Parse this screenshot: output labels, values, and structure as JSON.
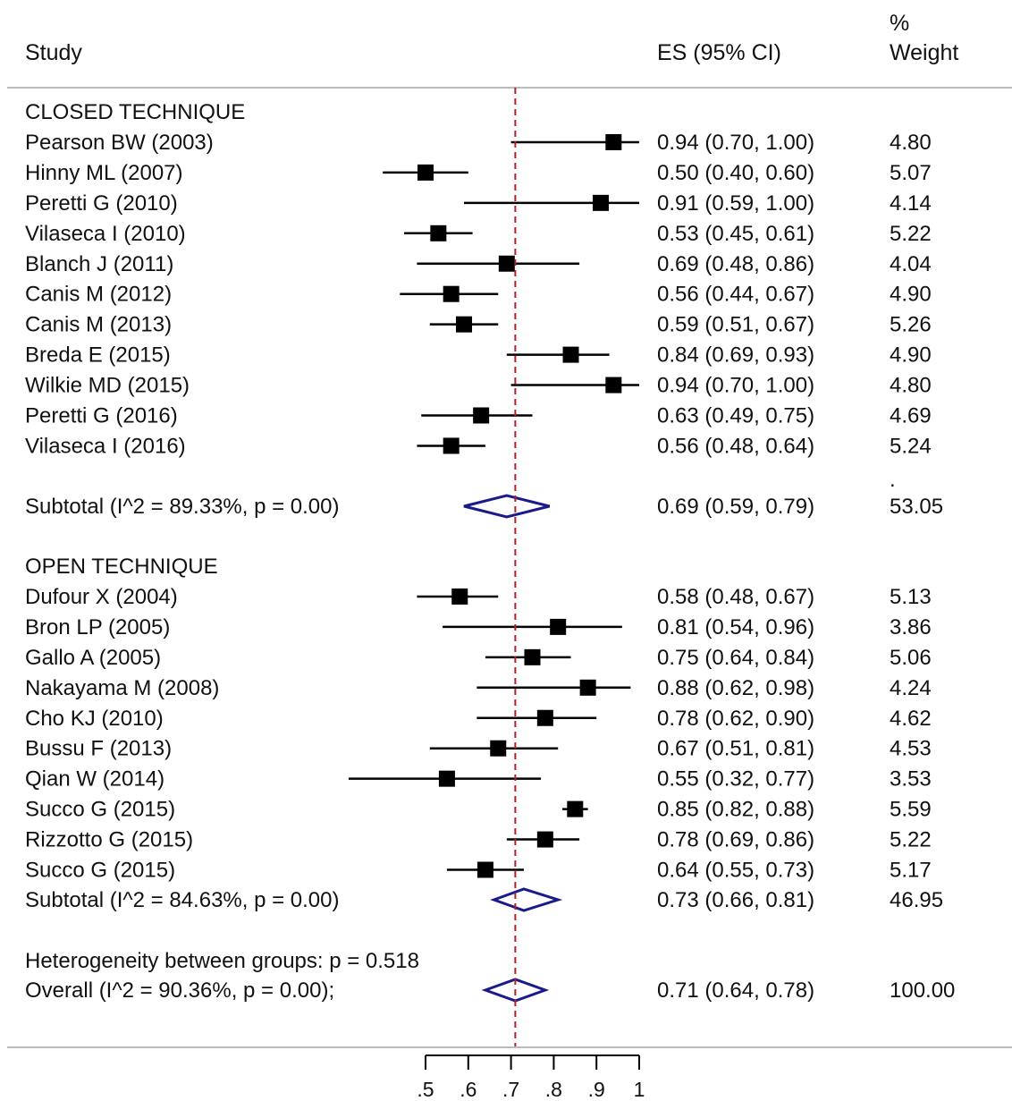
{
  "chart_data": {
    "type": "forest",
    "headers": {
      "study": "Study",
      "es": "ES (95% CI)",
      "weight_top": "%",
      "weight": "Weight"
    },
    "reference_line": 0.71,
    "xlim": [
      0.5,
      1.0
    ],
    "ticks": [
      {
        "value": 0.5,
        "label": ".5"
      },
      {
        "value": 0.6,
        "label": ".6"
      },
      {
        "value": 0.7,
        "label": ".7"
      },
      {
        "value": 0.8,
        "label": ".8"
      },
      {
        "value": 0.9,
        "label": ".9"
      },
      {
        "value": 1.0,
        "label": "1"
      }
    ],
    "groups": [
      {
        "label": "CLOSED TECHNIQUE",
        "studies": [
          {
            "name": "Pearson BW (2003)",
            "es": 0.94,
            "lo": 0.7,
            "hi": 1.0,
            "text": "0.94 (0.70, 1.00)",
            "weight": "4.80"
          },
          {
            "name": "Hinny ML (2007)",
            "es": 0.5,
            "lo": 0.4,
            "hi": 0.6,
            "text": "0.50 (0.40, 0.60)",
            "weight": "5.07"
          },
          {
            "name": "Peretti G (2010)",
            "es": 0.91,
            "lo": 0.59,
            "hi": 1.0,
            "text": "0.91 (0.59, 1.00)",
            "weight": "4.14"
          },
          {
            "name": "Vilaseca I (2010)",
            "es": 0.53,
            "lo": 0.45,
            "hi": 0.61,
            "text": "0.53 (0.45, 0.61)",
            "weight": "5.22"
          },
          {
            "name": "Blanch J (2011)",
            "es": 0.69,
            "lo": 0.48,
            "hi": 0.86,
            "text": "0.69 (0.48, 0.86)",
            "weight": "4.04"
          },
          {
            "name": "Canis M (2012)",
            "es": 0.56,
            "lo": 0.44,
            "hi": 0.67,
            "text": "0.56 (0.44, 0.67)",
            "weight": "4.90"
          },
          {
            "name": "Canis M (2013)",
            "es": 0.59,
            "lo": 0.51,
            "hi": 0.67,
            "text": "0.59 (0.51, 0.67)",
            "weight": "5.26"
          },
          {
            "name": "Breda E  (2015)",
            "es": 0.84,
            "lo": 0.69,
            "hi": 0.93,
            "text": "0.84 (0.69, 0.93)",
            "weight": "4.90"
          },
          {
            "name": "Wilkie MD (2015)",
            "es": 0.94,
            "lo": 0.7,
            "hi": 1.0,
            "text": "0.94 (0.70, 1.00)",
            "weight": "4.80"
          },
          {
            "name": "Peretti G (2016)",
            "es": 0.63,
            "lo": 0.49,
            "hi": 0.75,
            "text": "0.63 (0.49, 0.75)",
            "weight": "4.69"
          },
          {
            "name": "Vilaseca I (2016)",
            "es": 0.56,
            "lo": 0.48,
            "hi": 0.64,
            "text": "0.56 (0.48, 0.64)",
            "weight": "5.24"
          }
        ],
        "subtotal": {
          "label": "Subtotal  (I^2 = 89.33%, p = 0.00)",
          "es": 0.69,
          "lo": 0.59,
          "hi": 0.79,
          "text": "0.69 (0.59, 0.79)",
          "weight": "53.05",
          "weight_mark": "."
        }
      },
      {
        "label": "OPEN TECHNIQUE",
        "studies": [
          {
            "name": "Dufour X (2004)",
            "es": 0.58,
            "lo": 0.48,
            "hi": 0.67,
            "text": "0.58 (0.48, 0.67)",
            "weight": "5.13"
          },
          {
            "name": "Bron LP (2005)",
            "es": 0.81,
            "lo": 0.54,
            "hi": 0.96,
            "text": "0.81 (0.54, 0.96)",
            "weight": "3.86"
          },
          {
            "name": "Gallo A (2005)",
            "es": 0.75,
            "lo": 0.64,
            "hi": 0.84,
            "text": "0.75 (0.64, 0.84)",
            "weight": "5.06"
          },
          {
            "name": "Nakayama M (2008)",
            "es": 0.88,
            "lo": 0.62,
            "hi": 0.98,
            "text": "0.88 (0.62, 0.98)",
            "weight": "4.24"
          },
          {
            "name": "Cho KJ (2010)",
            "es": 0.78,
            "lo": 0.62,
            "hi": 0.9,
            "text": "0.78 (0.62, 0.90)",
            "weight": "4.62"
          },
          {
            "name": "Bussu F (2013)",
            "es": 0.67,
            "lo": 0.51,
            "hi": 0.81,
            "text": "0.67 (0.51, 0.81)",
            "weight": "4.53"
          },
          {
            "name": "Qian W (2014)",
            "es": 0.55,
            "lo": 0.32,
            "hi": 0.77,
            "text": "0.55 (0.32, 0.77)",
            "weight": "3.53"
          },
          {
            "name": "Succo G (2015)",
            "es": 0.85,
            "lo": 0.82,
            "hi": 0.88,
            "text": "0.85 (0.82, 0.88)",
            "weight": "5.59"
          },
          {
            "name": "Rizzotto G (2015)",
            "es": 0.78,
            "lo": 0.69,
            "hi": 0.86,
            "text": "0.78 (0.69, 0.86)",
            "weight": "5.22"
          },
          {
            "name": "Succo G (2015)",
            "es": 0.64,
            "lo": 0.55,
            "hi": 0.73,
            "text": "0.64 (0.55, 0.73)",
            "weight": "5.17"
          }
        ],
        "subtotal": {
          "label": "Subtotal  (I^2 = 84.63%, p = 0.00)",
          "es": 0.73,
          "lo": 0.66,
          "hi": 0.81,
          "text": "0.73 (0.66, 0.81)",
          "weight": "46.95"
        }
      }
    ],
    "heterogeneity": "Heterogeneity between groups: p = 0.518",
    "overall": {
      "label": "Overall  (I^2 = 90.36%, p = 0.00);",
      "es": 0.71,
      "lo": 0.64,
      "hi": 0.78,
      "text": "0.71 (0.64, 0.78)",
      "weight": "100.00"
    },
    "colors": {
      "text": "#111111",
      "marker": "#000000",
      "diamond": "#1a1a8c",
      "reference": "#b22222",
      "rule": "#bbbbbb"
    }
  }
}
